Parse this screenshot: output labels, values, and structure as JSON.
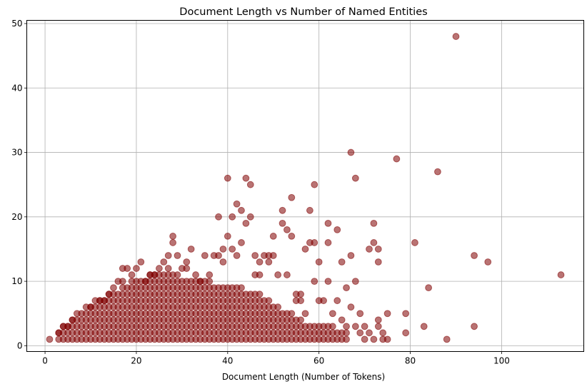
{
  "chart_data": {
    "type": "scatter",
    "title": "Document Length vs Number of Named Entities",
    "xlabel": "Document Length (Number of Tokens)",
    "ylabel": "",
    "xlim": [
      -4,
      118
    ],
    "ylim": [
      -0.9,
      50.5
    ],
    "xticks": [
      0,
      20,
      40,
      60,
      80,
      100
    ],
    "yticks": [
      0,
      10,
      20,
      30,
      40,
      50
    ],
    "grid": true,
    "marker_color": "#800000",
    "marker_alpha": 0.55,
    "dense_region": {
      "x_min": 3,
      "x_max": 66,
      "y_min": 1,
      "y_max_at_x": [
        [
          3,
          2
        ],
        [
          8,
          5
        ],
        [
          15,
          8
        ],
        [
          20,
          10
        ],
        [
          26,
          11
        ],
        [
          33,
          10
        ],
        [
          40,
          9
        ],
        [
          46,
          8
        ],
        [
          53,
          5
        ],
        [
          58,
          3
        ],
        [
          66,
          2
        ]
      ]
    },
    "points": [
      [
        1,
        1
      ],
      [
        3,
        2
      ],
      [
        4,
        3
      ],
      [
        5,
        3
      ],
      [
        6,
        4
      ],
      [
        7,
        5
      ],
      [
        9,
        6
      ],
      [
        10,
        6
      ],
      [
        11,
        7
      ],
      [
        12,
        7
      ],
      [
        13,
        7
      ],
      [
        14,
        8
      ],
      [
        15,
        9
      ],
      [
        16,
        10
      ],
      [
        17,
        10
      ],
      [
        17,
        12
      ],
      [
        18,
        12
      ],
      [
        19,
        11
      ],
      [
        20,
        12
      ],
      [
        21,
        13
      ],
      [
        22,
        10
      ],
      [
        23,
        11
      ],
      [
        24,
        11
      ],
      [
        25,
        12
      ],
      [
        26,
        13
      ],
      [
        27,
        12
      ],
      [
        27,
        14
      ],
      [
        28,
        16
      ],
      [
        28,
        17
      ],
      [
        29,
        14
      ],
      [
        30,
        12
      ],
      [
        31,
        12
      ],
      [
        31,
        13
      ],
      [
        32,
        15
      ],
      [
        33,
        11
      ],
      [
        34,
        10
      ],
      [
        35,
        14
      ],
      [
        36,
        11
      ],
      [
        37,
        14
      ],
      [
        38,
        20
      ],
      [
        38,
        14
      ],
      [
        39,
        15
      ],
      [
        39,
        13
      ],
      [
        40,
        17
      ],
      [
        40,
        26
      ],
      [
        41,
        20
      ],
      [
        41,
        15
      ],
      [
        42,
        22
      ],
      [
        42,
        14
      ],
      [
        43,
        21
      ],
      [
        43,
        16
      ],
      [
        44,
        26
      ],
      [
        44,
        19
      ],
      [
        45,
        25
      ],
      [
        45,
        20
      ],
      [
        46,
        11
      ],
      [
        46,
        14
      ],
      [
        47,
        13
      ],
      [
        47,
        11
      ],
      [
        48,
        14
      ],
      [
        49,
        13
      ],
      [
        49,
        14
      ],
      [
        50,
        17
      ],
      [
        50,
        14
      ],
      [
        51,
        11
      ],
      [
        52,
        21
      ],
      [
        52,
        19
      ],
      [
        53,
        18
      ],
      [
        53,
        11
      ],
      [
        54,
        23
      ],
      [
        54,
        17
      ],
      [
        55,
        7
      ],
      [
        55,
        8
      ],
      [
        56,
        8
      ],
      [
        56,
        7
      ],
      [
        57,
        15
      ],
      [
        57,
        5
      ],
      [
        58,
        21
      ],
      [
        58,
        16
      ],
      [
        59,
        25
      ],
      [
        59,
        16
      ],
      [
        59,
        10
      ],
      [
        60,
        13
      ],
      [
        60,
        7
      ],
      [
        61,
        7
      ],
      [
        62,
        19
      ],
      [
        62,
        16
      ],
      [
        62,
        10
      ],
      [
        63,
        5
      ],
      [
        63,
        3
      ],
      [
        64,
        18
      ],
      [
        64,
        7
      ],
      [
        65,
        13
      ],
      [
        65,
        4
      ],
      [
        66,
        9
      ],
      [
        66,
        3
      ],
      [
        67,
        30
      ],
      [
        67,
        14
      ],
      [
        67,
        6
      ],
      [
        68,
        26
      ],
      [
        68,
        10
      ],
      [
        68,
        3
      ],
      [
        69,
        5
      ],
      [
        69,
        2
      ],
      [
        70,
        3
      ],
      [
        70,
        1
      ],
      [
        71,
        15
      ],
      [
        71,
        2
      ],
      [
        72,
        19
      ],
      [
        72,
        16
      ],
      [
        72,
        1
      ],
      [
        73,
        15
      ],
      [
        73,
        13
      ],
      [
        73,
        4
      ],
      [
        73,
        3
      ],
      [
        74,
        2
      ],
      [
        74,
        1
      ],
      [
        75,
        5
      ],
      [
        75,
        1
      ],
      [
        77,
        29
      ],
      [
        79,
        5
      ],
      [
        79,
        2
      ],
      [
        81,
        16
      ],
      [
        83,
        3
      ],
      [
        84,
        9
      ],
      [
        86,
        27
      ],
      [
        88,
        1
      ],
      [
        90,
        48
      ],
      [
        94,
        14
      ],
      [
        94,
        3
      ],
      [
        97,
        13
      ],
      [
        113,
        11
      ]
    ]
  }
}
